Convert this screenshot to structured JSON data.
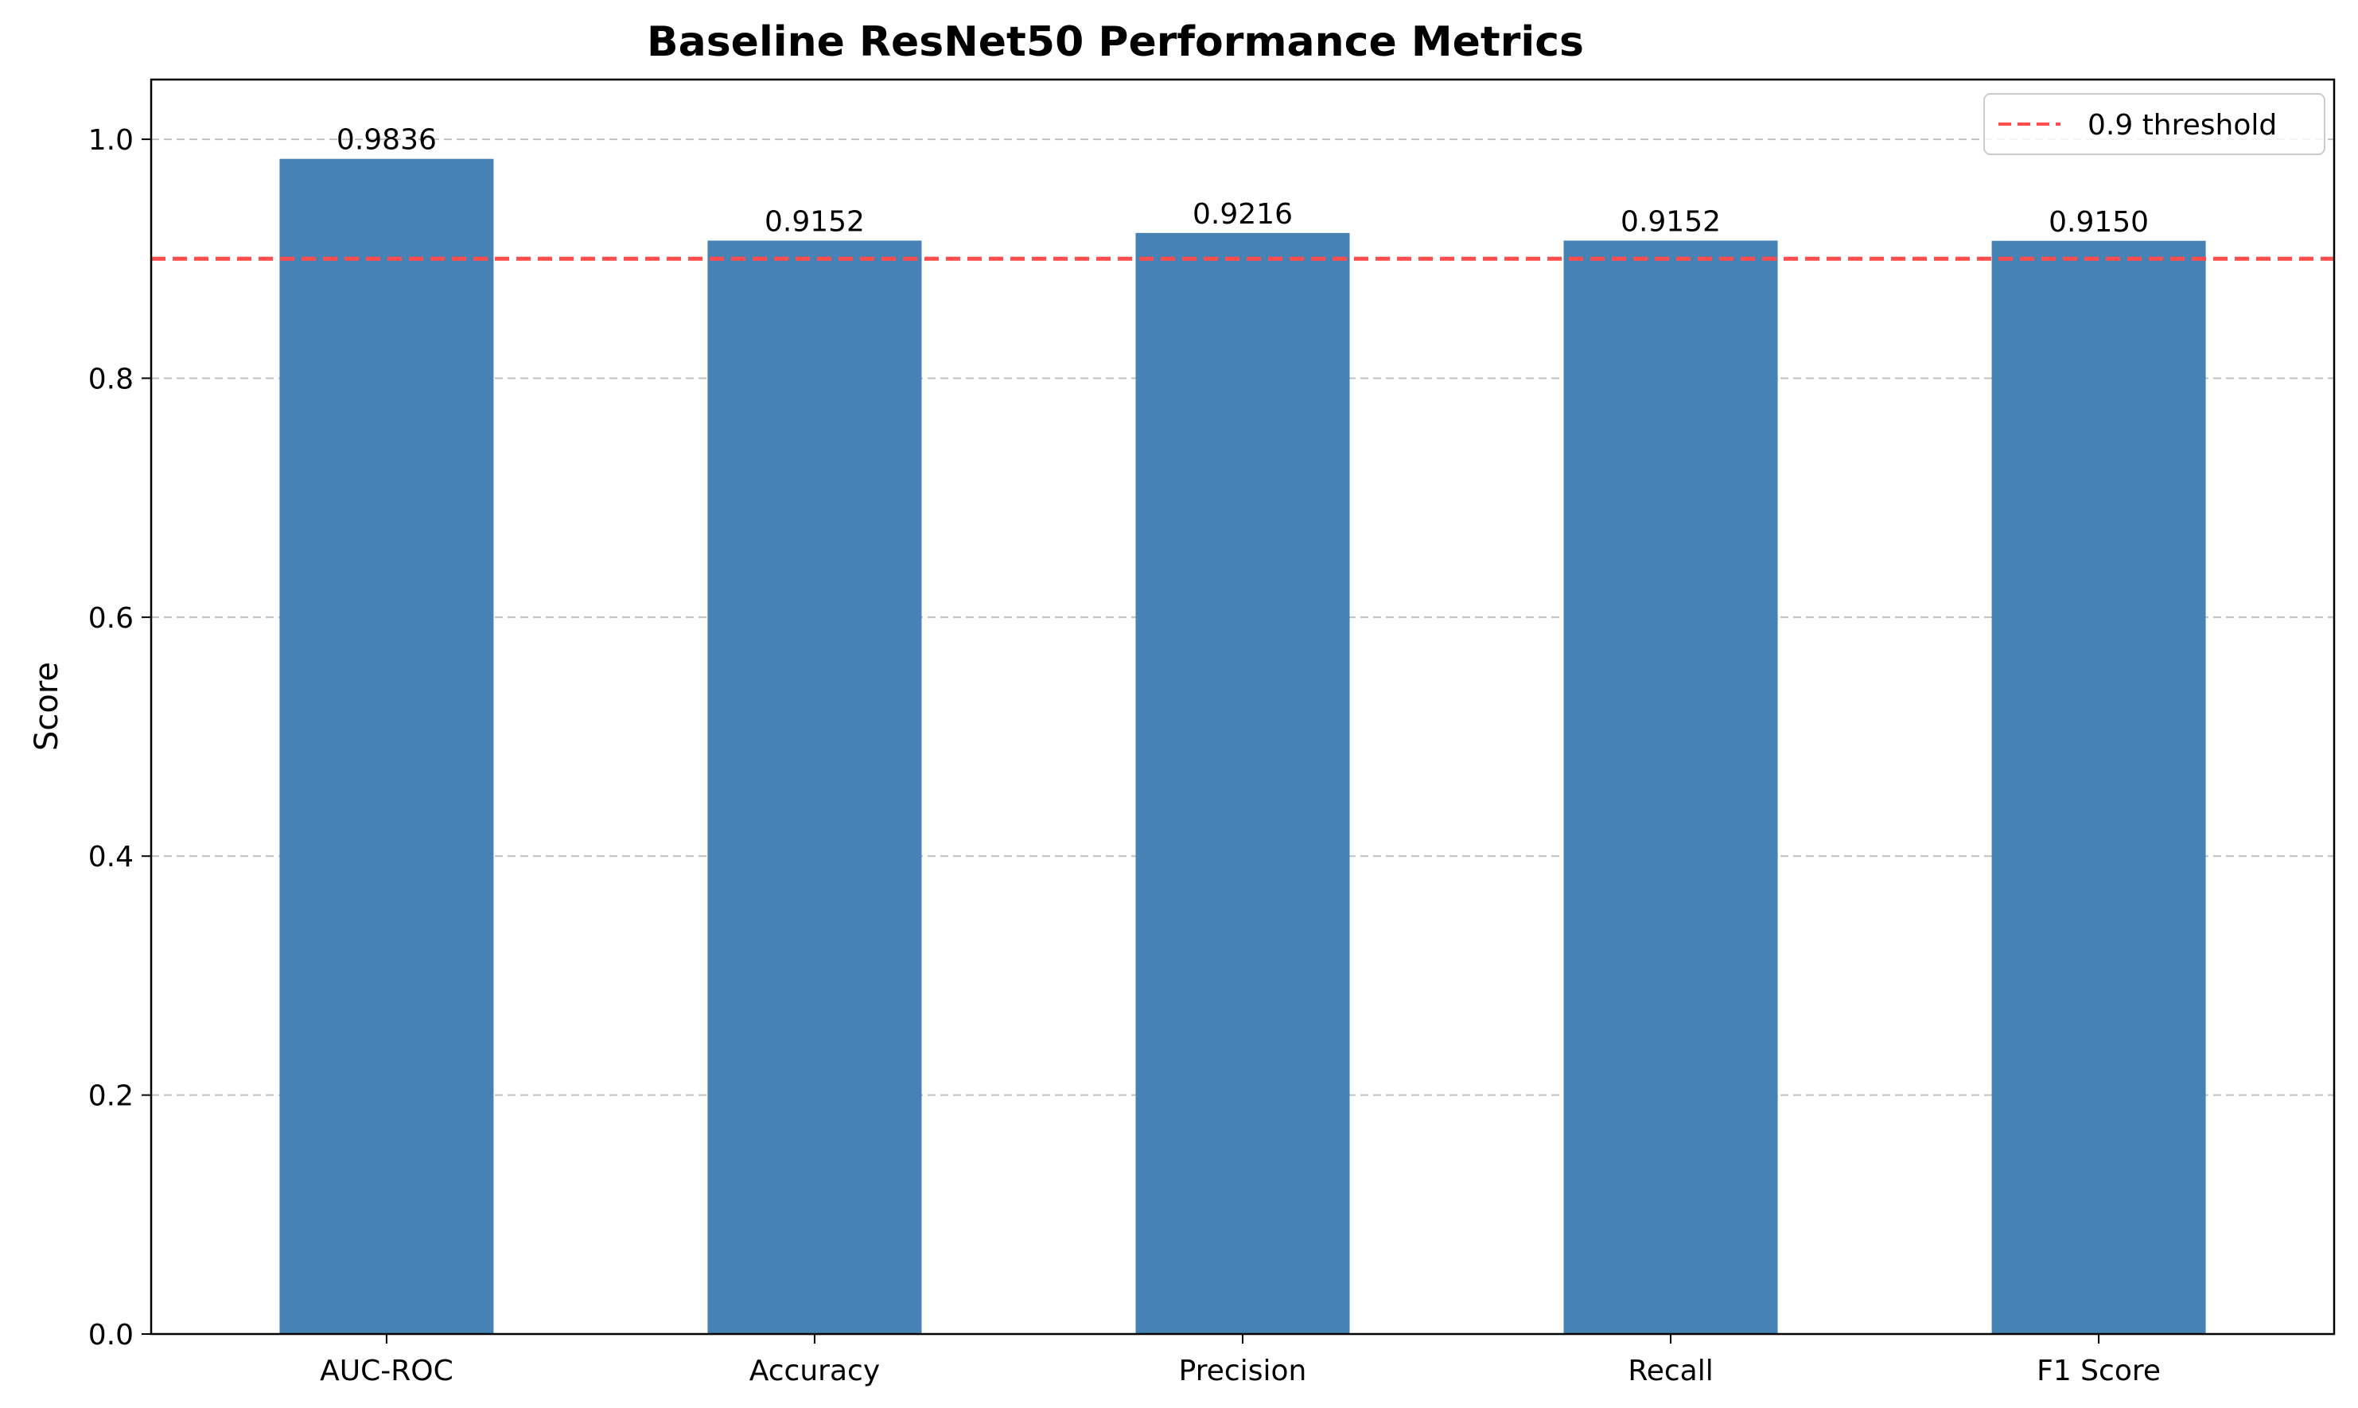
{
  "chart_data": {
    "type": "bar",
    "title": "Baseline ResNet50 Performance Metrics",
    "xlabel": "",
    "ylabel": "Score",
    "categories": [
      "AUC-ROC",
      "Accuracy",
      "Precision",
      "Recall",
      "F1 Score"
    ],
    "values": [
      0.9836,
      0.9152,
      0.9216,
      0.9152,
      0.915
    ],
    "data_labels": [
      "0.9836",
      "0.9152",
      "0.9216",
      "0.9152",
      "0.9150"
    ],
    "ylim": [
      0,
      1.05
    ],
    "yticks": [
      0.0,
      0.2,
      0.4,
      0.6,
      0.8,
      1.0
    ],
    "ytick_labels": [
      "0.0",
      "0.2",
      "0.4",
      "0.6",
      "0.8",
      "1.0"
    ],
    "grid": "y-dashed",
    "bar_color": "#4682b4",
    "threshold": {
      "value": 0.9,
      "label": "0.9 threshold",
      "color": "#ff4d4d",
      "style": "dashed"
    },
    "legend_position": "top-right"
  }
}
